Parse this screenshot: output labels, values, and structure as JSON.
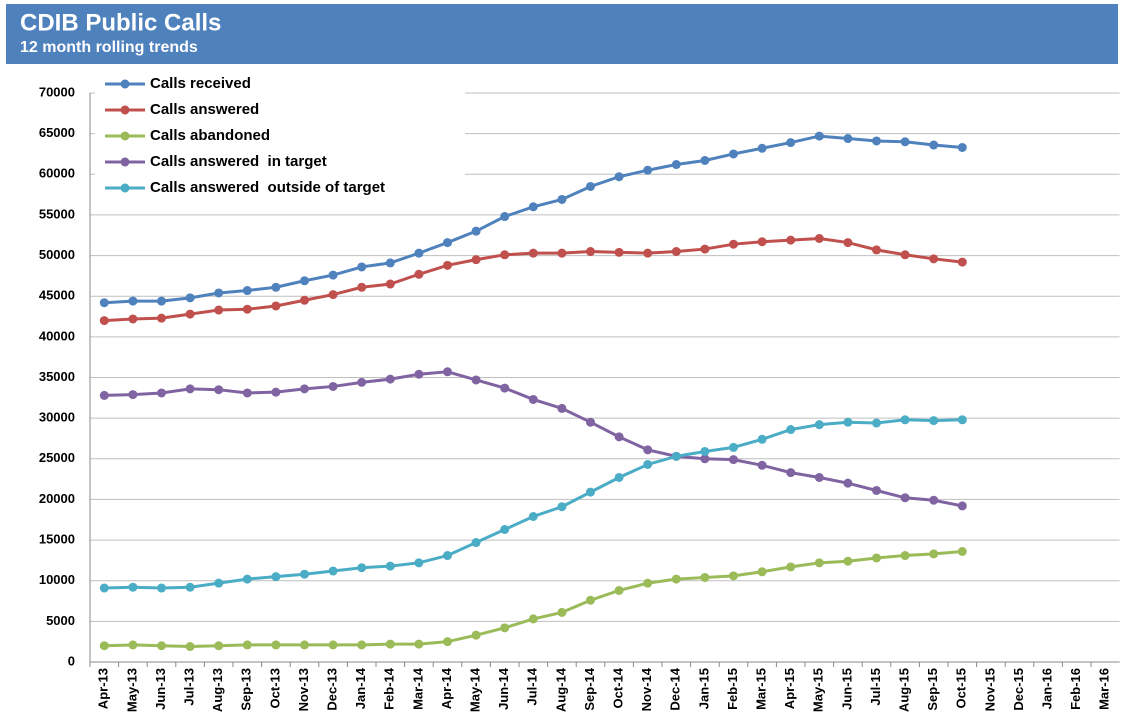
{
  "chart_data": {
    "type": "line",
    "title": "CDIB Public Calls",
    "subtitle": "12 month rolling trends",
    "categories": [
      "Apr-13",
      "May-13",
      "Jun-13",
      "Jul-13",
      "Aug-13",
      "Sep-13",
      "Oct-13",
      "Nov-13",
      "Dec-13",
      "Jan-14",
      "Feb-14",
      "Mar-14",
      "Apr-14",
      "May-14",
      "Jun-14",
      "Jul-14",
      "Aug-14",
      "Sep-14",
      "Oct-14",
      "Nov-14",
      "Dec-14",
      "Jan-15",
      "Feb-15",
      "Mar-15",
      "Apr-15",
      "May-15",
      "Jun-15",
      "Jul-15",
      "Aug-15",
      "Sep-15",
      "Oct-15",
      "Nov-15",
      "Dec-15",
      "Jan-16",
      "Feb-16",
      "Mar-16"
    ],
    "series": [
      {
        "name": "Calls received",
        "color": "#4f81bd",
        "values": [
          44200,
          44400,
          44400,
          44800,
          45400,
          45700,
          46100,
          46900,
          47600,
          48600,
          49100,
          50300,
          51600,
          53000,
          54800,
          56000,
          56900,
          58500,
          59700,
          60500,
          61200,
          61700,
          62500,
          63200,
          63900,
          64700,
          64400,
          64100,
          64000,
          63600,
          63300,
          null,
          null,
          null,
          null,
          null
        ]
      },
      {
        "name": "Calls answered",
        "color": "#c0504d",
        "values": [
          42000,
          42200,
          42300,
          42800,
          43300,
          43400,
          43800,
          44500,
          45200,
          46100,
          46500,
          47700,
          48800,
          49500,
          50100,
          50300,
          50300,
          50500,
          50400,
          50300,
          50500,
          50800,
          51400,
          51700,
          51900,
          52100,
          51600,
          50700,
          50100,
          49600,
          49200,
          null,
          null,
          null,
          null,
          null
        ]
      },
      {
        "name": "Calls abandoned",
        "color": "#9bbb59",
        "values": [
          2000,
          2100,
          2000,
          1900,
          2000,
          2100,
          2100,
          2100,
          2100,
          2100,
          2200,
          2200,
          2500,
          3300,
          4200,
          5300,
          6100,
          7600,
          8800,
          9700,
          10200,
          10400,
          10600,
          11100,
          11700,
          12200,
          12400,
          12800,
          13100,
          13300,
          13600,
          null,
          null,
          null,
          null,
          null
        ]
      },
      {
        "name": "Calls answered  in target",
        "color": "#8064a2",
        "values": [
          32800,
          32900,
          33100,
          33600,
          33500,
          33100,
          33200,
          33600,
          33900,
          34400,
          34800,
          35400,
          35700,
          34700,
          33700,
          32300,
          31200,
          29500,
          27700,
          26100,
          25300,
          25000,
          24900,
          24200,
          23300,
          22700,
          22000,
          21100,
          20200,
          19900,
          19200,
          null,
          null,
          null,
          null,
          null
        ]
      },
      {
        "name": "Calls answered  outside of target",
        "color": "#4bacc6",
        "values": [
          9100,
          9200,
          9100,
          9200,
          9700,
          10200,
          10500,
          10800,
          11200,
          11600,
          11800,
          12200,
          13100,
          14700,
          16300,
          17900,
          19100,
          20900,
          22700,
          24300,
          25300,
          25900,
          26400,
          27400,
          28600,
          29200,
          29500,
          29400,
          29800,
          29700,
          29800,
          null,
          null,
          null,
          null,
          null
        ]
      }
    ],
    "ylim": [
      0,
      70000
    ],
    "yticks": [
      0,
      5000,
      10000,
      15000,
      20000,
      25000,
      30000,
      35000,
      40000,
      45000,
      50000,
      55000,
      60000,
      65000,
      70000
    ],
    "grid": true,
    "legend": "top-left"
  }
}
